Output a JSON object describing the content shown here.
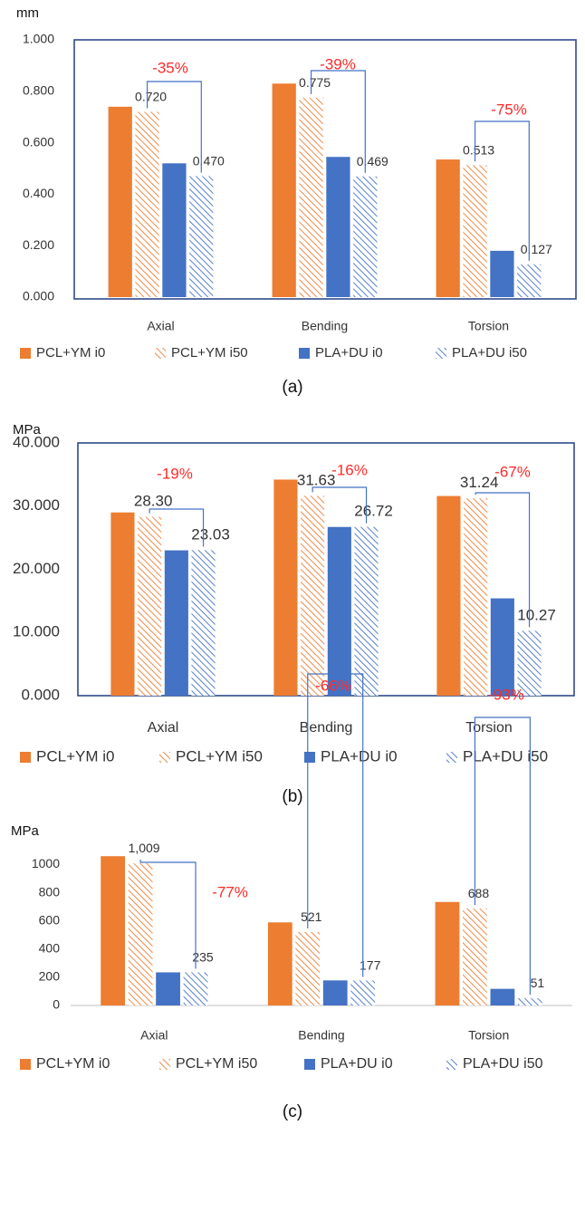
{
  "colors": {
    "pcl": "#ED7D31",
    "pla": "#4472C4",
    "frame": "#2F4A8C",
    "bracket": "#4472C4",
    "pct": "#FF2A2A",
    "text": "#333333"
  },
  "legend": [
    "PCL+YM i0",
    "PCL+YM i50",
    "PLA+DU i0",
    "PLA+DU i50"
  ],
  "chart_data": [
    {
      "type": "bar",
      "caption": "(a)",
      "unit": "mm",
      "categories": [
        "Axial",
        "Bending",
        "Torsion"
      ],
      "series": [
        {
          "name": "PCL+YM i0",
          "values": [
            0.74,
            0.83,
            0.535
          ]
        },
        {
          "name": "PCL+YM i50",
          "values": [
            0.72,
            0.775,
            0.513
          ],
          "labels": [
            "0.720",
            "0.775",
            "0.513"
          ]
        },
        {
          "name": "PLA+DU i0",
          "values": [
            0.52,
            0.545,
            0.18
          ]
        },
        {
          "name": "PLA+DU i50",
          "values": [
            0.47,
            0.469,
            0.127
          ],
          "labels": [
            "0.470",
            "0.469",
            "0.127"
          ]
        }
      ],
      "ylim": [
        0,
        1
      ],
      "yticks": [
        "0.000",
        "0.200",
        "0.400",
        "0.600",
        "0.800",
        "1.000"
      ],
      "annotations": [
        "-35%",
        "-39%",
        "-75%"
      ]
    },
    {
      "type": "bar",
      "caption": "(b)",
      "unit": "MPa",
      "categories": [
        "Axial",
        "Bending",
        "Torsion"
      ],
      "series": [
        {
          "name": "PCL+YM i0",
          "values": [
            29.0,
            34.2,
            31.6
          ]
        },
        {
          "name": "PCL+YM i50",
          "values": [
            28.3,
            31.63,
            31.24
          ],
          "labels": [
            "28.30",
            "31.63",
            "31.24"
          ]
        },
        {
          "name": "PLA+DU i0",
          "values": [
            23.0,
            26.7,
            15.4
          ]
        },
        {
          "name": "PLA+DU i50",
          "values": [
            23.03,
            26.72,
            10.27
          ],
          "labels": [
            "23.03",
            "26.72",
            "10.27"
          ]
        }
      ],
      "ylim": [
        0,
        40
      ],
      "yticks": [
        "0.000",
        "10.000",
        "20.000",
        "30.000",
        "40.000"
      ],
      "annotations": [
        "-19%",
        "-16%",
        "-67%"
      ]
    },
    {
      "type": "bar",
      "caption": "(c)",
      "unit": "MPa",
      "categories": [
        "Axial",
        "Bending",
        "Torsion"
      ],
      "series": [
        {
          "name": "PCL+YM i0",
          "values": [
            1060,
            590,
            735
          ]
        },
        {
          "name": "PCL+YM i50",
          "values": [
            1009,
            521,
            688
          ],
          "labels": [
            "1,009",
            "521",
            "688"
          ]
        },
        {
          "name": "PLA+DU i0",
          "values": [
            235,
            178,
            118
          ]
        },
        {
          "name": "PLA+DU i50",
          "values": [
            235,
            177,
            51
          ],
          "labels": [
            "235",
            "177",
            "51"
          ]
        }
      ],
      "ylim": [
        0,
        1100
      ],
      "yticks": [
        "0",
        "200",
        "400",
        "600",
        "800",
        "1000"
      ],
      "annotations": [
        "-77%",
        "-66%",
        "-93%"
      ]
    }
  ]
}
